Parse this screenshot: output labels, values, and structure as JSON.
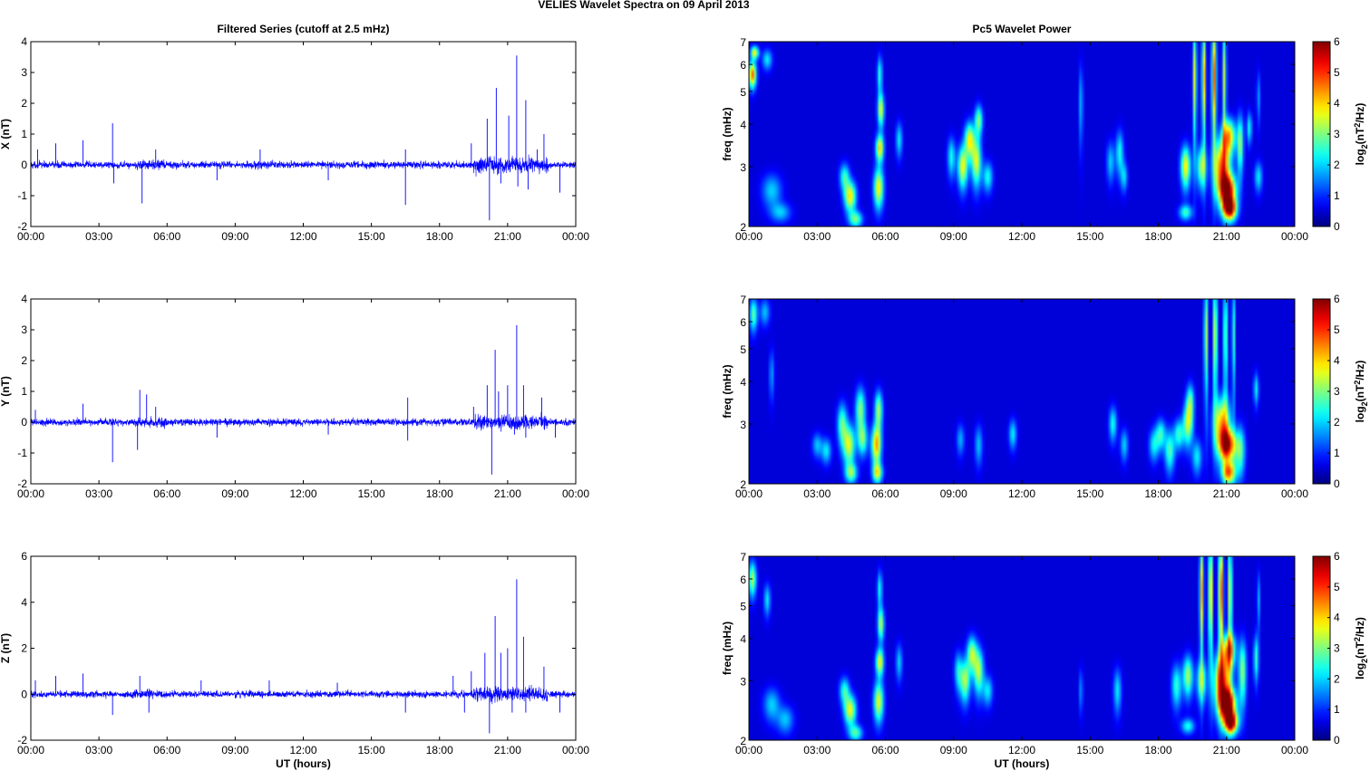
{
  "figure": {
    "title": "VELIES Wavelet Spectra on 09 April     2013"
  },
  "chart_data": [
    {
      "id": "x-series",
      "type": "line",
      "title": "Filtered Series (cutoff at 2.5 mHz)",
      "xlabel": "",
      "ylabel": "X (nT)",
      "xlim": [
        0,
        24
      ],
      "ylim": [
        -2,
        4
      ],
      "xticks": [
        "00:00",
        "03:00",
        "06:00",
        "09:00",
        "12:00",
        "15:00",
        "18:00",
        "21:00",
        "00:00"
      ],
      "yticks": [
        "-2",
        "-1",
        "0",
        "1",
        "2",
        "3",
        "4"
      ],
      "line_color": "#0000ff",
      "baseline_noise": 0.08,
      "spikes": [
        [
          0.3,
          0.5
        ],
        [
          1.1,
          0.7
        ],
        [
          2.3,
          0.8
        ],
        [
          3.6,
          1.35
        ],
        [
          3.65,
          -0.6
        ],
        [
          4.9,
          -1.25
        ],
        [
          5.5,
          0.5
        ],
        [
          8.2,
          -0.5
        ],
        [
          10.1,
          0.5
        ],
        [
          13.1,
          -0.5
        ],
        [
          16.5,
          -1.3
        ],
        [
          16.5,
          0.5
        ],
        [
          19.4,
          0.7
        ],
        [
          20.1,
          1.5
        ],
        [
          20.2,
          -1.8
        ],
        [
          20.5,
          2.5
        ],
        [
          20.7,
          -0.6
        ],
        [
          21.05,
          1.6
        ],
        [
          21.4,
          3.55
        ],
        [
          21.45,
          -0.7
        ],
        [
          21.8,
          2.1
        ],
        [
          21.9,
          -0.8
        ],
        [
          22.3,
          0.5
        ],
        [
          22.6,
          1.0
        ],
        [
          23.3,
          -0.9
        ]
      ]
    },
    {
      "id": "y-series",
      "type": "line",
      "title": "",
      "xlabel": "",
      "ylabel": "Y (nT)",
      "xlim": [
        0,
        24
      ],
      "ylim": [
        -2,
        4
      ],
      "xticks": [
        "00:00",
        "03:00",
        "06:00",
        "09:00",
        "12:00",
        "15:00",
        "18:00",
        "21:00",
        "00:00"
      ],
      "yticks": [
        "-2",
        "-1",
        "0",
        "1",
        "2",
        "3",
        "4"
      ],
      "line_color": "#0000ff",
      "baseline_noise": 0.08,
      "spikes": [
        [
          0.2,
          0.4
        ],
        [
          2.3,
          0.6
        ],
        [
          3.6,
          -1.3
        ],
        [
          4.7,
          -0.9
        ],
        [
          4.8,
          1.05
        ],
        [
          5.1,
          0.9
        ],
        [
          5.5,
          0.5
        ],
        [
          8.2,
          -0.5
        ],
        [
          13.1,
          -0.4
        ],
        [
          16.6,
          0.8
        ],
        [
          16.6,
          -0.6
        ],
        [
          19.5,
          0.5
        ],
        [
          20.1,
          1.2
        ],
        [
          20.3,
          -1.7
        ],
        [
          20.45,
          2.35
        ],
        [
          20.6,
          1.0
        ],
        [
          21.0,
          1.2
        ],
        [
          21.3,
          -0.4
        ],
        [
          21.4,
          3.15
        ],
        [
          21.7,
          1.2
        ],
        [
          21.8,
          -0.5
        ],
        [
          22.5,
          0.8
        ],
        [
          23.1,
          -0.5
        ]
      ]
    },
    {
      "id": "z-series",
      "type": "line",
      "title": "",
      "xlabel": "UT (hours)",
      "ylabel": "Z (nT)",
      "xlim": [
        0,
        24
      ],
      "ylim": [
        -2,
        6
      ],
      "xticks": [
        "00:00",
        "03:00",
        "06:00",
        "09:00",
        "12:00",
        "15:00",
        "18:00",
        "21:00",
        "00:00"
      ],
      "yticks": [
        "-2",
        "0",
        "2",
        "4",
        "6"
      ],
      "line_color": "#0000ff",
      "baseline_noise": 0.1,
      "spikes": [
        [
          0.2,
          0.6
        ],
        [
          1.1,
          0.8
        ],
        [
          2.3,
          0.9
        ],
        [
          3.6,
          -0.9
        ],
        [
          4.8,
          0.8
        ],
        [
          5.2,
          -0.8
        ],
        [
          7.5,
          0.6
        ],
        [
          10.5,
          0.6
        ],
        [
          13.5,
          0.5
        ],
        [
          16.5,
          -0.8
        ],
        [
          18.6,
          0.8
        ],
        [
          19.1,
          -0.8
        ],
        [
          19.4,
          1.0
        ],
        [
          20.0,
          1.8
        ],
        [
          20.2,
          -1.7
        ],
        [
          20.45,
          3.4
        ],
        [
          20.7,
          1.8
        ],
        [
          21.0,
          2.0
        ],
        [
          21.2,
          -0.8
        ],
        [
          21.4,
          5.0
        ],
        [
          21.7,
          2.5
        ],
        [
          21.8,
          -0.8
        ],
        [
          22.6,
          1.2
        ],
        [
          23.3,
          -0.8
        ]
      ]
    },
    {
      "id": "x-power",
      "type": "heatmap",
      "title": "Pc5 Wavelet Power",
      "xlabel": "",
      "ylabel": "freq (mHz)",
      "xlim": [
        0,
        24
      ],
      "ylim": [
        2,
        7
      ],
      "yscale": "log",
      "xticks": [
        "00:00",
        "03:00",
        "06:00",
        "09:00",
        "12:00",
        "15:00",
        "18:00",
        "21:00",
        "00:00"
      ],
      "yticks": [
        "2",
        "3",
        "4",
        "5",
        "6",
        "7"
      ],
      "colorbar": {
        "label_main": "log",
        "label_sub": "2",
        "label_unit": "(nT",
        "label_sup": "2",
        "label_end": "/Hz)",
        "range": [
          0,
          6
        ],
        "ticks": [
          "0",
          "1",
          "2",
          "3",
          "4",
          "5",
          "6"
        ]
      },
      "colormap": "jet",
      "blobs": [
        [
          0.15,
          5.6,
          0.12,
          0.35,
          4.5
        ],
        [
          0.25,
          6.5,
          0.12,
          0.2,
          3.5
        ],
        [
          0.8,
          6.2,
          0.15,
          0.3,
          1.8
        ],
        [
          1.0,
          2.55,
          0.3,
          0.2,
          1.6
        ],
        [
          1.4,
          2.2,
          0.3,
          0.1,
          1.5
        ],
        [
          4.2,
          2.8,
          0.15,
          0.18,
          2.2
        ],
        [
          4.45,
          2.45,
          0.18,
          0.18,
          3.6
        ],
        [
          4.7,
          2.1,
          0.2,
          0.08,
          2.5
        ],
        [
          5.7,
          2.6,
          0.15,
          0.25,
          3.6
        ],
        [
          5.75,
          3.4,
          0.12,
          0.22,
          3.8
        ],
        [
          5.8,
          4.4,
          0.1,
          0.35,
          3.3
        ],
        [
          5.75,
          5.6,
          0.08,
          0.5,
          2.2
        ],
        [
          6.6,
          3.6,
          0.1,
          0.3,
          1.8
        ],
        [
          8.9,
          3.2,
          0.12,
          0.3,
          2.0
        ],
        [
          9.4,
          3.0,
          0.15,
          0.3,
          3.5
        ],
        [
          9.7,
          3.6,
          0.15,
          0.3,
          3.5
        ],
        [
          10.0,
          3.1,
          0.15,
          0.35,
          3.3
        ],
        [
          10.1,
          4.1,
          0.12,
          0.3,
          2.8
        ],
        [
          10.5,
          2.8,
          0.15,
          0.2,
          2.0
        ],
        [
          14.6,
          4.6,
          0.06,
          0.9,
          1.6
        ],
        [
          15.9,
          3.1,
          0.12,
          0.3,
          1.6
        ],
        [
          16.3,
          3.3,
          0.12,
          0.35,
          2.0
        ],
        [
          16.5,
          2.8,
          0.1,
          0.2,
          1.6
        ],
        [
          19.2,
          3.0,
          0.15,
          0.3,
          3.6
        ],
        [
          19.2,
          2.2,
          0.2,
          0.08,
          2.2
        ],
        [
          19.9,
          3.0,
          0.15,
          0.3,
          2.8
        ],
        [
          19.6,
          5.5,
          0.06,
          1.5,
          3.5
        ],
        [
          20.0,
          5.5,
          0.06,
          1.5,
          4.0
        ],
        [
          20.45,
          5.5,
          0.07,
          1.5,
          4.5
        ],
        [
          20.9,
          5.5,
          0.06,
          1.5,
          3.2
        ],
        [
          20.8,
          3.0,
          0.25,
          0.4,
          4.5
        ],
        [
          21.05,
          2.55,
          0.25,
          0.2,
          5.4
        ],
        [
          21.15,
          2.25,
          0.2,
          0.12,
          5.2
        ],
        [
          21.1,
          3.7,
          0.2,
          0.3,
          3.8
        ],
        [
          21.6,
          3.5,
          0.1,
          0.5,
          2.8
        ],
        [
          22.0,
          3.9,
          0.08,
          0.3,
          2.0
        ],
        [
          22.4,
          2.8,
          0.12,
          0.2,
          1.8
        ],
        [
          22.4,
          4.8,
          0.06,
          0.6,
          1.3
        ]
      ]
    },
    {
      "id": "y-power",
      "type": "heatmap",
      "title": "",
      "xlabel": "",
      "ylabel": "freq (mHz)",
      "xlim": [
        0,
        24
      ],
      "ylim": [
        2,
        7
      ],
      "yscale": "log",
      "xticks": [
        "00:00",
        "03:00",
        "06:00",
        "09:00",
        "12:00",
        "15:00",
        "18:00",
        "21:00",
        "00:00"
      ],
      "yticks": [
        "2",
        "3",
        "4",
        "5",
        "6",
        "7"
      ],
      "colorbar": {
        "label_main": "log",
        "label_sub": "2",
        "label_unit": "(nT",
        "label_sup": "2",
        "label_end": "/Hz)",
        "range": [
          0,
          6
        ],
        "ticks": [
          "0",
          "1",
          "2",
          "3",
          "4",
          "5",
          "6"
        ]
      },
      "colormap": "jet",
      "blobs": [
        [
          0.2,
          6.3,
          0.12,
          0.5,
          2.5
        ],
        [
          0.7,
          6.4,
          0.15,
          0.4,
          1.5
        ],
        [
          1.0,
          4.2,
          0.08,
          0.5,
          1.3
        ],
        [
          3.0,
          2.6,
          0.15,
          0.15,
          1.5
        ],
        [
          3.4,
          2.5,
          0.15,
          0.15,
          1.8
        ],
        [
          4.1,
          3.0,
          0.15,
          0.3,
          2.5
        ],
        [
          4.4,
          2.6,
          0.18,
          0.25,
          3.3
        ],
        [
          4.5,
          2.15,
          0.18,
          0.1,
          2.5
        ],
        [
          4.9,
          3.3,
          0.15,
          0.35,
          2.8
        ],
        [
          5.0,
          2.7,
          0.15,
          0.2,
          2.4
        ],
        [
          5.6,
          2.6,
          0.15,
          0.25,
          4.0
        ],
        [
          5.7,
          3.3,
          0.12,
          0.3,
          3.0
        ],
        [
          5.65,
          2.15,
          0.15,
          0.1,
          3.0
        ],
        [
          9.3,
          2.7,
          0.12,
          0.2,
          1.4
        ],
        [
          10.1,
          2.6,
          0.12,
          0.25,
          1.5
        ],
        [
          11.6,
          2.8,
          0.12,
          0.2,
          1.8
        ],
        [
          16.0,
          3.0,
          0.12,
          0.25,
          2.0
        ],
        [
          16.5,
          2.6,
          0.12,
          0.2,
          1.6
        ],
        [
          17.8,
          2.6,
          0.15,
          0.2,
          1.8
        ],
        [
          18.1,
          2.8,
          0.15,
          0.2,
          2.2
        ],
        [
          18.5,
          2.5,
          0.15,
          0.25,
          2.4
        ],
        [
          18.9,
          2.8,
          0.15,
          0.2,
          2.2
        ],
        [
          19.3,
          3.0,
          0.15,
          0.3,
          3.0
        ],
        [
          19.4,
          3.5,
          0.12,
          0.3,
          2.4
        ],
        [
          19.7,
          2.4,
          0.15,
          0.2,
          1.8
        ],
        [
          20.1,
          5.5,
          0.06,
          1.5,
          3.3
        ],
        [
          20.5,
          5.5,
          0.06,
          1.5,
          3.8
        ],
        [
          20.95,
          5.5,
          0.06,
          1.5,
          3.0
        ],
        [
          21.3,
          5.5,
          0.05,
          1.5,
          2.5
        ],
        [
          20.8,
          3.0,
          0.25,
          0.4,
          4.0
        ],
        [
          21.05,
          2.6,
          0.25,
          0.2,
          4.8
        ],
        [
          21.1,
          2.15,
          0.2,
          0.12,
          4.2
        ],
        [
          21.6,
          2.5,
          0.15,
          0.3,
          2.4
        ],
        [
          22.3,
          3.8,
          0.08,
          0.3,
          1.8
        ]
      ]
    },
    {
      "id": "z-power",
      "type": "heatmap",
      "title": "",
      "xlabel": "UT (hours)",
      "ylabel": "freq (mHz)",
      "xlim": [
        0,
        24
      ],
      "ylim": [
        2,
        7
      ],
      "yscale": "log",
      "xticks": [
        "00:00",
        "03:00",
        "06:00",
        "09:00",
        "12:00",
        "15:00",
        "18:00",
        "21:00",
        "00:00"
      ],
      "yticks": [
        "2",
        "3",
        "4",
        "5",
        "6",
        "7"
      ],
      "colorbar": {
        "label_main": "log",
        "label_sub": "2",
        "label_unit": "(nT",
        "label_sup": "2",
        "label_end": "/Hz)",
        "range": [
          0,
          6
        ],
        "ticks": [
          "0",
          "1",
          "2",
          "3",
          "4",
          "5",
          "6"
        ]
      },
      "colormap": "jet",
      "blobs": [
        [
          0.15,
          6.0,
          0.12,
          0.5,
          3.0
        ],
        [
          0.8,
          5.2,
          0.1,
          0.4,
          1.8
        ],
        [
          1.0,
          2.55,
          0.25,
          0.2,
          1.6
        ],
        [
          1.6,
          2.3,
          0.25,
          0.15,
          1.5
        ],
        [
          4.2,
          2.8,
          0.15,
          0.18,
          2.2
        ],
        [
          4.45,
          2.45,
          0.18,
          0.18,
          3.4
        ],
        [
          4.7,
          2.1,
          0.2,
          0.08,
          2.3
        ],
        [
          5.7,
          2.6,
          0.15,
          0.25,
          3.4
        ],
        [
          5.75,
          3.4,
          0.12,
          0.22,
          3.6
        ],
        [
          5.8,
          4.4,
          0.1,
          0.35,
          3.0
        ],
        [
          5.75,
          5.6,
          0.08,
          0.5,
          2.0
        ],
        [
          6.6,
          3.4,
          0.1,
          0.3,
          1.6
        ],
        [
          9.2,
          3.2,
          0.12,
          0.3,
          1.8
        ],
        [
          9.5,
          3.0,
          0.15,
          0.3,
          3.0
        ],
        [
          9.8,
          3.6,
          0.15,
          0.3,
          3.0
        ],
        [
          10.1,
          3.2,
          0.15,
          0.35,
          3.0
        ],
        [
          10.5,
          2.8,
          0.15,
          0.2,
          1.8
        ],
        [
          14.6,
          2.8,
          0.06,
          0.3,
          1.3
        ],
        [
          16.2,
          2.8,
          0.12,
          0.3,
          1.8
        ],
        [
          18.8,
          2.9,
          0.15,
          0.3,
          2.2
        ],
        [
          19.3,
          3.1,
          0.15,
          0.3,
          3.0
        ],
        [
          19.3,
          2.2,
          0.2,
          0.08,
          2.0
        ],
        [
          19.9,
          3.0,
          0.15,
          0.3,
          2.6
        ],
        [
          19.9,
          5.5,
          0.06,
          1.5,
          4.0
        ],
        [
          20.3,
          5.5,
          0.06,
          1.5,
          4.5
        ],
        [
          20.75,
          5.5,
          0.07,
          1.5,
          5.0
        ],
        [
          21.15,
          5.5,
          0.06,
          1.5,
          3.8
        ],
        [
          20.8,
          3.0,
          0.25,
          0.4,
          4.8
        ],
        [
          21.05,
          2.55,
          0.25,
          0.2,
          5.6
        ],
        [
          21.2,
          2.25,
          0.2,
          0.12,
          5.4
        ],
        [
          21.1,
          3.7,
          0.2,
          0.3,
          4.0
        ],
        [
          21.7,
          3.2,
          0.12,
          0.5,
          2.8
        ],
        [
          22.3,
          3.5,
          0.08,
          0.4,
          2.2
        ],
        [
          22.4,
          5.2,
          0.05,
          0.7,
          1.5
        ]
      ]
    }
  ]
}
